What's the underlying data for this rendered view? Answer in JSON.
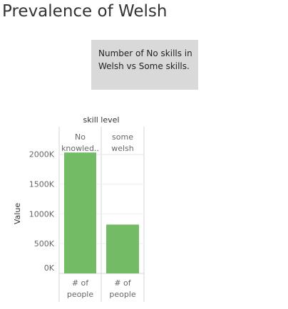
{
  "page": {
    "title": "Prevalence of Welsh"
  },
  "description": {
    "text_line1": "Number of No skills in",
    "text_line2": "Welsh vs Some skills."
  },
  "chart_data": {
    "type": "bar",
    "title": "",
    "column_header": "skill level",
    "categories": [
      {
        "label_lines": [
          "No",
          "knowled.."
        ],
        "footer_lines": [
          "# of",
          "people"
        ]
      },
      {
        "label_lines": [
          "some",
          "welsh"
        ],
        "footer_lines": [
          "# of",
          "people"
        ]
      }
    ],
    "values": [
      2030000,
      820000
    ],
    "ylabel": "Value",
    "ylim": [
      0,
      2200000
    ],
    "yticks": [
      {
        "value": 0,
        "label": "0K"
      },
      {
        "value": 500000,
        "label": "500K"
      },
      {
        "value": 1000000,
        "label": "1000K"
      },
      {
        "value": 1500000,
        "label": "1500K"
      },
      {
        "value": 2000000,
        "label": "2000K"
      }
    ],
    "bar_color": "#74bb65",
    "grid": true,
    "legend": "none"
  }
}
